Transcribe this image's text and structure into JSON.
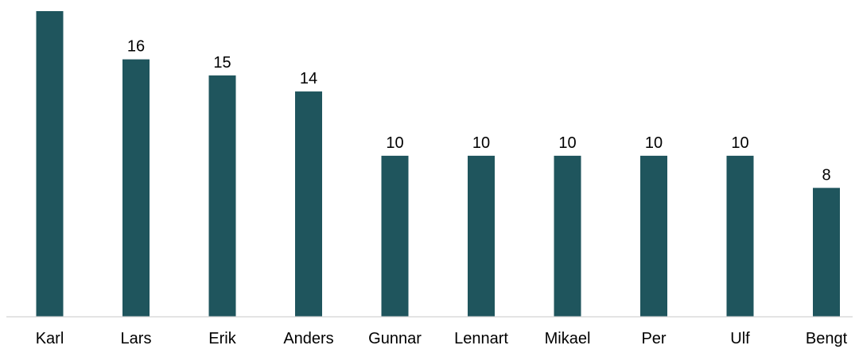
{
  "chart_data": {
    "type": "bar",
    "title": "",
    "xlabel": "",
    "ylabel": "",
    "categories": [
      "Karl",
      "Lars",
      "Erik",
      "Anders",
      "Gunnar",
      "Lennart",
      "Mikael",
      "Per",
      "Ulf",
      "Bengt"
    ],
    "values": [
      19,
      16,
      15,
      14,
      10,
      10,
      10,
      10,
      10,
      8
    ],
    "data_labels": [
      "",
      "16",
      "15",
      "14",
      "10",
      "10",
      "10",
      "10",
      "10",
      "8"
    ],
    "ylim": [
      0,
      19
    ],
    "grid": false,
    "legend": "none",
    "bar_color": "#1f555d",
    "axis_color": "#d9d9d9"
  }
}
